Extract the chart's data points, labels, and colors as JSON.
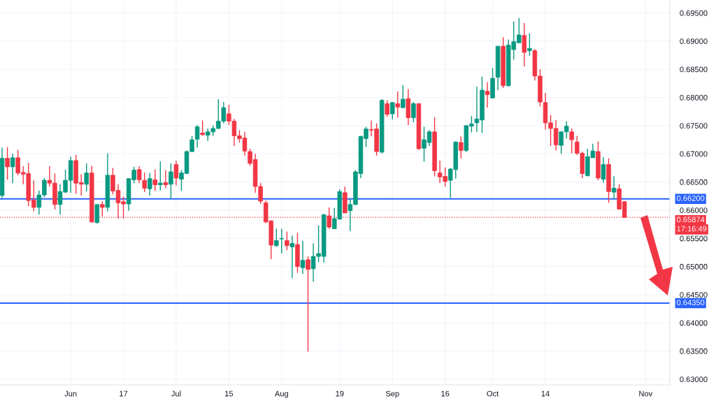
{
  "chart_data": {
    "type": "candlestick",
    "categories": [
      null,
      null,
      null,
      null,
      null,
      null,
      null,
      null,
      null,
      null,
      null,
      null,
      null,
      "Jun",
      null,
      null,
      null,
      null,
      null,
      null,
      null,
      null,
      null,
      "17",
      null,
      null,
      null,
      null,
      null,
      null,
      null,
      null,
      null,
      "Jul",
      null,
      null,
      null,
      null,
      null,
      null,
      null,
      null,
      null,
      "15",
      null,
      null,
      null,
      null,
      null,
      null,
      null,
      null,
      null,
      "Aug",
      null,
      null,
      null,
      null,
      null,
      null,
      null,
      null,
      null,
      null,
      "19",
      null,
      null,
      null,
      null,
      null,
      null,
      null,
      null,
      null,
      "Sep",
      null,
      null,
      null,
      null,
      null,
      null,
      null,
      null,
      null,
      "16",
      null,
      null,
      null,
      null,
      null,
      null,
      null,
      null,
      "Oct",
      null,
      null,
      null,
      null,
      null,
      null,
      null,
      null,
      null,
      "14",
      null,
      null,
      null,
      null,
      null,
      null,
      null,
      null,
      null,
      null,
      null,
      null,
      null,
      null,
      null,
      null,
      null,
      null,
      "Nov"
    ],
    "ohlc": [
      [
        0.6626,
        0.6711,
        0.6622,
        0.6692
      ],
      [
        0.6692,
        0.6712,
        0.6654,
        0.6677
      ],
      [
        0.6677,
        0.67,
        0.6648,
        0.6693
      ],
      [
        0.6693,
        0.6707,
        0.6662,
        0.6666
      ],
      [
        0.6667,
        0.6678,
        0.6646,
        0.6664
      ],
      [
        0.6665,
        0.6684,
        0.6607,
        0.6617
      ],
      [
        0.6618,
        0.6653,
        0.6598,
        0.6605
      ],
      [
        0.6605,
        0.6635,
        0.6592,
        0.6627
      ],
      [
        0.6627,
        0.6657,
        0.6623,
        0.6653
      ],
      [
        0.6653,
        0.6678,
        0.6642,
        0.6648
      ],
      [
        0.6648,
        0.6665,
        0.6601,
        0.661
      ],
      [
        0.661,
        0.6646,
        0.6592,
        0.6633
      ],
      [
        0.6632,
        0.6672,
        0.6631,
        0.6653
      ],
      [
        0.6653,
        0.6695,
        0.6631,
        0.6688
      ],
      [
        0.6688,
        0.6698,
        0.6629,
        0.6648
      ],
      [
        0.6649,
        0.6664,
        0.6626,
        0.6646
      ],
      [
        0.6646,
        0.6683,
        0.6633,
        0.6666
      ],
      [
        0.6666,
        0.6679,
        0.6578,
        0.6579
      ],
      [
        0.6578,
        0.661,
        0.6576,
        0.661
      ],
      [
        0.661,
        0.6616,
        0.6589,
        0.6605
      ],
      [
        0.6605,
        0.6701,
        0.6598,
        0.6662
      ],
      [
        0.6662,
        0.6675,
        0.6628,
        0.6634
      ],
      [
        0.6635,
        0.6646,
        0.6585,
        0.6613
      ],
      [
        0.6615,
        0.6624,
        0.6585,
        0.6611
      ],
      [
        0.6611,
        0.6656,
        0.6599,
        0.6656
      ],
      [
        0.6654,
        0.6677,
        0.6648,
        0.6671
      ],
      [
        0.6672,
        0.6678,
        0.6648,
        0.6654
      ],
      [
        0.6653,
        0.6667,
        0.6632,
        0.6639
      ],
      [
        0.6638,
        0.6666,
        0.6626,
        0.6656
      ],
      [
        0.6654,
        0.6672,
        0.6634,
        0.6645
      ],
      [
        0.6645,
        0.6687,
        0.6635,
        0.6648
      ],
      [
        0.6649,
        0.6671,
        0.6639,
        0.6645
      ],
      [
        0.6646,
        0.6683,
        0.662,
        0.6668
      ],
      [
        0.6681,
        0.6688,
        0.6644,
        0.6657
      ],
      [
        0.6655,
        0.6671,
        0.6634,
        0.6666
      ],
      [
        0.6665,
        0.6706,
        0.6665,
        0.6704
      ],
      [
        0.6704,
        0.6732,
        0.6703,
        0.6725
      ],
      [
        0.6726,
        0.6751,
        0.6711,
        0.6748
      ],
      [
        0.6737,
        0.6759,
        0.6732,
        0.6734
      ],
      [
        0.6733,
        0.6745,
        0.6723,
        0.6739
      ],
      [
        0.6739,
        0.675,
        0.6732,
        0.6745
      ],
      [
        0.6745,
        0.6797,
        0.6744,
        0.6758
      ],
      [
        0.6758,
        0.6792,
        0.6754,
        0.6782
      ],
      [
        0.6771,
        0.6787,
        0.6751,
        0.6758
      ],
      [
        0.6758,
        0.6762,
        0.6714,
        0.6732
      ],
      [
        0.6732,
        0.6742,
        0.672,
        0.6727
      ],
      [
        0.6728,
        0.6739,
        0.6697,
        0.6705
      ],
      [
        0.6704,
        0.6709,
        0.6679,
        0.6683
      ],
      [
        0.669,
        0.67,
        0.6631,
        0.6642
      ],
      [
        0.6642,
        0.6648,
        0.6611,
        0.6616
      ],
      [
        0.6613,
        0.6617,
        0.6577,
        0.6579
      ],
      [
        0.6581,
        0.6582,
        0.6513,
        0.6538
      ],
      [
        0.6537,
        0.6567,
        0.6535,
        0.6546
      ],
      [
        0.6549,
        0.6567,
        0.6523,
        0.655
      ],
      [
        0.6546,
        0.6562,
        0.6529,
        0.6537
      ],
      [
        0.6535,
        0.6555,
        0.6479,
        0.6541
      ],
      [
        0.6539,
        0.656,
        0.6489,
        0.65
      ],
      [
        0.6498,
        0.6546,
        0.6487,
        0.6511
      ],
      [
        0.6512,
        0.6518,
        0.6349,
        0.6495
      ],
      [
        0.6496,
        0.6541,
        0.6473,
        0.6518
      ],
      [
        0.6518,
        0.6573,
        0.6508,
        0.6523
      ],
      [
        0.6518,
        0.6593,
        0.6507,
        0.6592
      ],
      [
        0.659,
        0.6605,
        0.6567,
        0.657
      ],
      [
        0.6567,
        0.6604,
        0.6567,
        0.6585
      ],
      [
        0.6584,
        0.6637,
        0.6584,
        0.6633
      ],
      [
        0.6631,
        0.6642,
        0.6595,
        0.6595
      ],
      [
        0.6599,
        0.6621,
        0.6563,
        0.661
      ],
      [
        0.661,
        0.6671,
        0.6609,
        0.6668
      ],
      [
        0.6665,
        0.6732,
        0.6657,
        0.6731
      ],
      [
        0.6727,
        0.6748,
        0.6712,
        0.6744
      ],
      [
        0.6743,
        0.6759,
        0.6731,
        0.6742
      ],
      [
        0.6744,
        0.6754,
        0.6697,
        0.6704
      ],
      [
        0.6703,
        0.6797,
        0.6701,
        0.6795
      ],
      [
        0.6789,
        0.6795,
        0.6766,
        0.677
      ],
      [
        0.6771,
        0.6792,
        0.6761,
        0.6791
      ],
      [
        0.6789,
        0.6811,
        0.6764,
        0.6783
      ],
      [
        0.6782,
        0.6822,
        0.6781,
        0.6797
      ],
      [
        0.6798,
        0.6815,
        0.6751,
        0.6764
      ],
      [
        0.6764,
        0.6792,
        0.6756,
        0.6789
      ],
      [
        0.6789,
        0.679,
        0.6707,
        0.6709
      ],
      [
        0.671,
        0.6748,
        0.6686,
        0.6725
      ],
      [
        0.672,
        0.6742,
        0.6714,
        0.6739
      ],
      [
        0.6739,
        0.6765,
        0.666,
        0.667
      ],
      [
        0.6666,
        0.6688,
        0.6648,
        0.6659
      ],
      [
        0.666,
        0.6676,
        0.6642,
        0.6651
      ],
      [
        0.6653,
        0.6675,
        0.6622,
        0.6673
      ],
      [
        0.6672,
        0.6722,
        0.6656,
        0.6721
      ],
      [
        0.672,
        0.6731,
        0.6692,
        0.6706
      ],
      [
        0.6706,
        0.6751,
        0.6703,
        0.675
      ],
      [
        0.6749,
        0.6767,
        0.6738,
        0.6753
      ],
      [
        0.6755,
        0.6819,
        0.6739,
        0.6762
      ],
      [
        0.676,
        0.6837,
        0.6737,
        0.6813
      ],
      [
        0.6811,
        0.6827,
        0.6782,
        0.6805
      ],
      [
        0.6799,
        0.6852,
        0.6799,
        0.6834
      ],
      [
        0.6836,
        0.6891,
        0.6813,
        0.6891
      ],
      [
        0.6891,
        0.6907,
        0.6817,
        0.6821
      ],
      [
        0.6821,
        0.6903,
        0.6819,
        0.6893
      ],
      [
        0.6885,
        0.6935,
        0.6867,
        0.6899
      ],
      [
        0.6897,
        0.6941,
        0.6897,
        0.6911
      ],
      [
        0.691,
        0.6932,
        0.6855,
        0.688
      ],
      [
        0.6883,
        0.6914,
        0.6874,
        0.6887
      ],
      [
        0.6883,
        0.6886,
        0.683,
        0.6838
      ],
      [
        0.6838,
        0.685,
        0.6784,
        0.6792
      ],
      [
        0.6791,
        0.6808,
        0.6743,
        0.6755
      ],
      [
        0.6755,
        0.6769,
        0.6714,
        0.6745
      ],
      [
        0.6745,
        0.676,
        0.6706,
        0.6716
      ],
      [
        0.6715,
        0.674,
        0.67,
        0.6739
      ],
      [
        0.6739,
        0.6758,
        0.6727,
        0.6749
      ],
      [
        0.6739,
        0.6745,
        0.6701,
        0.6725
      ],
      [
        0.6721,
        0.6732,
        0.6698,
        0.6701
      ],
      [
        0.6701,
        0.6704,
        0.6657,
        0.6665
      ],
      [
        0.6661,
        0.6709,
        0.666,
        0.6695
      ],
      [
        0.6693,
        0.6718,
        0.6693,
        0.6705
      ],
      [
        0.6704,
        0.6722,
        0.6653,
        0.6657
      ],
      [
        0.6655,
        0.6694,
        0.6649,
        0.6681
      ],
      [
        0.6681,
        0.6692,
        0.6613,
        0.6633
      ],
      [
        0.6632,
        0.666,
        0.662,
        0.6639
      ],
      [
        0.6638,
        0.6646,
        0.6601,
        0.6602
      ],
      [
        0.6615,
        0.6616,
        0.6587,
        0.6587
      ],
      null,
      null,
      null,
      null
    ],
    "colors": [
      "#089981",
      "#f23645",
      "#089981",
      "#f23645",
      "#f23645",
      "#f23645",
      "#f23645",
      "#089981",
      "#089981",
      "#f23645",
      "#f23645",
      "#089981",
      "#089981",
      "#089981",
      "#f23645",
      "#f23645",
      "#089981",
      "#f23645",
      "#089981",
      "#f23645",
      "#089981",
      "#f23645",
      "#f23645",
      "#f23645",
      "#089981",
      "#089981",
      "#f23645",
      "#f23645",
      "#089981",
      "#f23645",
      "#089981",
      "#f23645",
      "#089981",
      "#f23645",
      "#089981",
      "#089981",
      "#089981",
      "#089981",
      "#f23645",
      "#089981",
      "#089981",
      "#089981",
      "#089981",
      "#f23645",
      "#f23645",
      "#f23645",
      "#f23645",
      "#f23645",
      "#f23645",
      "#f23645",
      "#f23645",
      "#f23645",
      "#089981",
      "#089981",
      "#f23645",
      "#089981",
      "#f23645",
      "#089981",
      "#f23645",
      "#089981",
      "#089981",
      "#089981",
      "#f23645",
      "#089981",
      "#089981",
      "#f23645",
      "#089981",
      "#089981",
      "#089981",
      "#089981",
      "#f23645",
      "#f23645",
      "#089981",
      "#f23645",
      "#089981",
      "#f23645",
      "#089981",
      "#f23645",
      "#089981",
      "#f23645",
      "#089981",
      "#089981",
      "#f23645",
      "#f23645",
      "#f23645",
      "#089981",
      "#089981",
      "#f23645",
      "#089981",
      "#089981",
      "#089981",
      "#089981",
      "#f23645",
      "#089981",
      "#089981",
      "#f23645",
      "#089981",
      "#089981",
      "#089981",
      "#f23645",
      "#089981",
      "#f23645",
      "#f23645",
      "#f23645",
      "#f23645",
      "#f23645",
      "#089981",
      "#089981",
      "#f23645",
      "#f23645",
      "#f23645",
      "#089981",
      "#089981",
      "#f23645",
      "#089981",
      "#f23645",
      "#089981",
      "#f23645",
      "#f23645",
      null,
      null,
      null,
      null
    ],
    "ylim": [
      0.629,
      0.6973
    ],
    "yticks": [
      {
        "value": 0.63,
        "label": "0.63000"
      },
      {
        "value": 0.635,
        "label": "0.63500"
      },
      {
        "value": 0.64,
        "label": "0.64000"
      },
      {
        "value": 0.645,
        "label": "0.64500"
      },
      {
        "value": 0.65,
        "label": "0.65000"
      },
      {
        "value": 0.655,
        "label": "0.65500"
      },
      {
        "value": 0.66,
        "label": "0.66000"
      },
      {
        "value": 0.665,
        "label": "0.66500"
      },
      {
        "value": 0.67,
        "label": "0.67000"
      },
      {
        "value": 0.675,
        "label": "0.67500"
      },
      {
        "value": 0.68,
        "label": "0.68000"
      },
      {
        "value": 0.685,
        "label": "0.68500"
      },
      {
        "value": 0.69,
        "label": "0.69000"
      },
      {
        "value": 0.695,
        "label": "0.69500"
      }
    ],
    "ref_lines": [
      {
        "axis": "y",
        "value": 0.662,
        "label": "0.66200",
        "color": "#2962ff",
        "line_style": "solid"
      },
      {
        "axis": "y",
        "value": 0.6435,
        "label": "0.64350",
        "color": "#2962ff",
        "line_style": "solid"
      },
      {
        "axis": "y",
        "value": 0.65874,
        "label": "0.65874",
        "color": "#f23645",
        "line_style": "dotted"
      }
    ],
    "annotations": [
      "17:16:49"
    ],
    "grid": true,
    "legend": false
  }
}
